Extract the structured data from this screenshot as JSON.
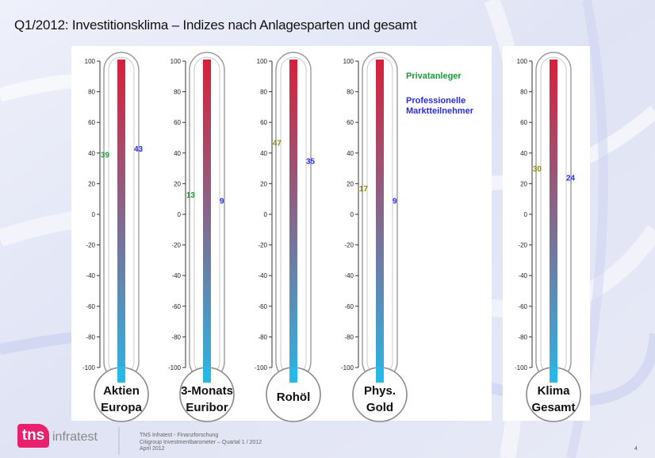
{
  "title": "Q1/2012: Investitionsklima – Indizes nach Anlagesparten und gesamt",
  "legend": {
    "private": "Privatanleger",
    "professional_line1": "Professionelle",
    "professional_line2": "Marktteilnehmer"
  },
  "colors": {
    "private": "#1a9a3a",
    "private_olive": "#8a8a10",
    "professional": "#2a2ae8",
    "tube_top": "#d8203a",
    "tube_bottom": "#28b8e8",
    "logo": "#e8206e"
  },
  "footer": {
    "logo_mark": "tns",
    "logo_text": "infratest",
    "source_line1": "TNS Infratest - Finanzforschung",
    "source_line2": "Citigroup Investmentbarometer – Quartal 1 / 2012",
    "source_line3": "April 2012",
    "page": "4"
  },
  "chart_data": {
    "type": "thermometer",
    "ylim": [
      -100,
      100
    ],
    "yticks": [
      "100",
      "80",
      "60",
      "40",
      "20",
      "0",
      "-20",
      "-40",
      "-60",
      "-80",
      "-100"
    ],
    "series": [
      {
        "name": "Privatanleger"
      },
      {
        "name": "Professionelle Marktteilnehmer"
      }
    ],
    "thermometers": [
      {
        "label_line1": "Aktien",
        "label_line2": "Europa",
        "private": 39,
        "professional": 43,
        "private_color": "#1a9a3a"
      },
      {
        "label_line1": "3-Monats",
        "label_line2": "Euribor",
        "private": 13,
        "professional": 9,
        "private_color": "#1a9a3a"
      },
      {
        "label_line1": "Rohöl",
        "label_line2": "",
        "private": 47,
        "professional": 35,
        "private_color": "#8a8a10"
      },
      {
        "label_line1": "Phys.",
        "label_line2": "Gold",
        "private": 17,
        "professional": 9,
        "private_color": "#8a8a10"
      },
      {
        "label_line1": "Klima",
        "label_line2": "Gesamt",
        "private": 30,
        "professional": 24,
        "private_color": "#8a8a10"
      }
    ]
  }
}
